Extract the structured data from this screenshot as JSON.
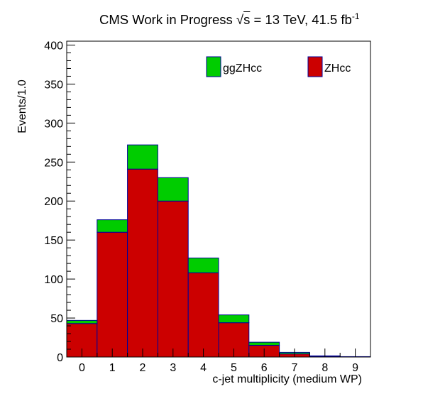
{
  "chart_data": {
    "type": "bar",
    "stacked": true,
    "title_parts": {
      "prefix": "CMS Work in Progress ",
      "sqrt_symbol": "√",
      "sqrt_var": "s",
      "mid": " = 13 TeV, 41.5 fb",
      "exponent": "-1"
    },
    "xlabel": "c-jet multiplicity (medium WP)",
    "ylabel": "Events/1.0",
    "xlim": [
      -0.5,
      9.5
    ],
    "ylim": [
      0,
      405
    ],
    "x_ticks": [
      "0",
      "1",
      "2",
      "3",
      "4",
      "5",
      "6",
      "7",
      "8",
      "9"
    ],
    "y_ticks": [
      "0",
      "50",
      "100",
      "150",
      "200",
      "250",
      "300",
      "350",
      "400"
    ],
    "bins": [
      0,
      1,
      2,
      3,
      4,
      5,
      6,
      7,
      8,
      9
    ],
    "series": [
      {
        "name": "ZHcc",
        "color": "#cc0000",
        "values": [
          43,
          160,
          241,
          200,
          108,
          44,
          15,
          4,
          1,
          0.3
        ]
      },
      {
        "name": "ggZHcc",
        "color": "#00cc00",
        "values": [
          4,
          16,
          31,
          30,
          19,
          10,
          4,
          2,
          0.5,
          0.2
        ]
      }
    ],
    "legend": {
      "placement": "top-right",
      "items": [
        {
          "label": "ggZHcc",
          "color": "#00cc00"
        },
        {
          "label": "ZHcc",
          "color": "#cc0000"
        }
      ]
    },
    "outline_color": "#000099"
  }
}
